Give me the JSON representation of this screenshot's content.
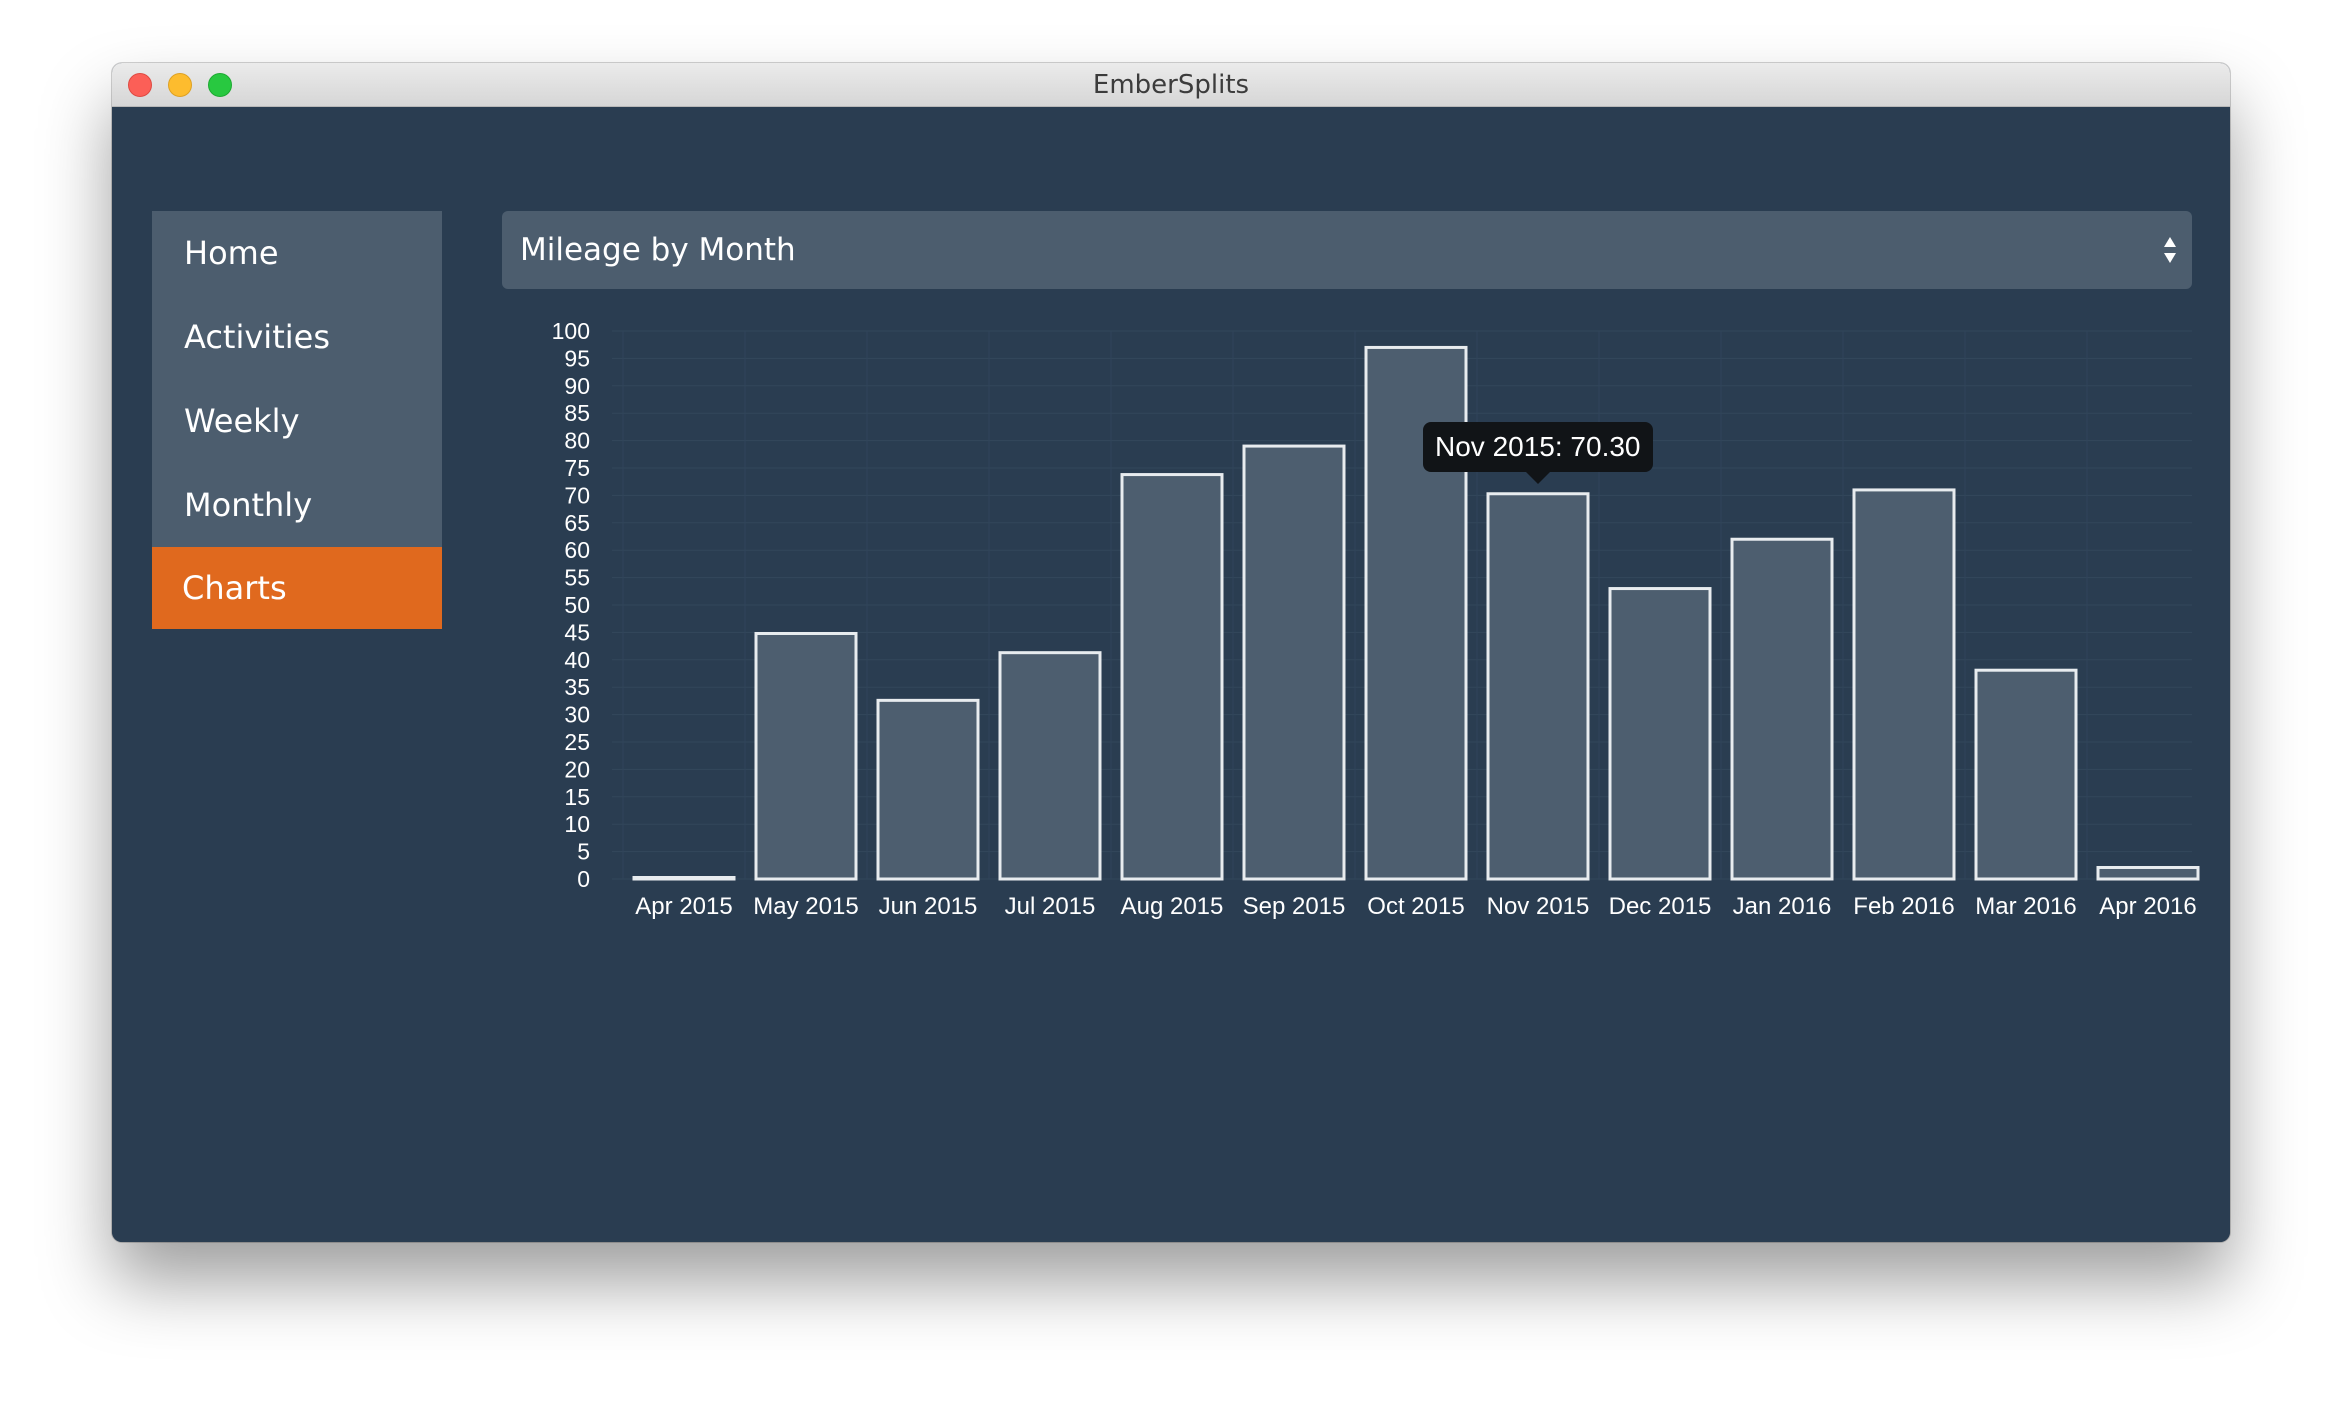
{
  "window": {
    "title": "EmberSplits"
  },
  "sidebar": {
    "items": [
      {
        "label": "Home",
        "active": false
      },
      {
        "label": "Activities",
        "active": false
      },
      {
        "label": "Weekly",
        "active": false
      },
      {
        "label": "Monthly",
        "active": false
      },
      {
        "label": "Charts",
        "active": true
      }
    ]
  },
  "chart_select": {
    "value": "Mileage by Month",
    "icon": "updown-arrows-icon"
  },
  "tooltip": {
    "text": "Nov 2015: 70.30",
    "category": "Nov 2015"
  },
  "colors": {
    "background": "#2a3d51",
    "panel": "#4c5d6e",
    "accent": "#e0691e",
    "bar_fill": "#4d5e6f",
    "bar_stroke": "#e8ecef"
  },
  "chart_data": {
    "type": "bar",
    "categories": [
      "Apr 2015",
      "May 2015",
      "Jun 2015",
      "Jul 2015",
      "Aug 2015",
      "Sep 2015",
      "Oct 2015",
      "Nov 2015",
      "Dec 2015",
      "Jan 2016",
      "Feb 2016",
      "Mar 2016",
      "Apr 2016"
    ],
    "values": [
      0.1,
      44.8,
      32.6,
      41.3,
      73.8,
      79.0,
      97.0,
      70.3,
      53.0,
      62.0,
      71.0,
      38.1,
      2.1
    ],
    "yticks": [
      "0",
      "5",
      "10",
      "15",
      "20",
      "25",
      "30",
      "35",
      "40",
      "45",
      "50",
      "55",
      "60",
      "65",
      "70",
      "75",
      "80",
      "85",
      "90",
      "95",
      "100"
    ],
    "ylim": [
      0,
      100
    ],
    "grid": true,
    "legend": "none"
  }
}
